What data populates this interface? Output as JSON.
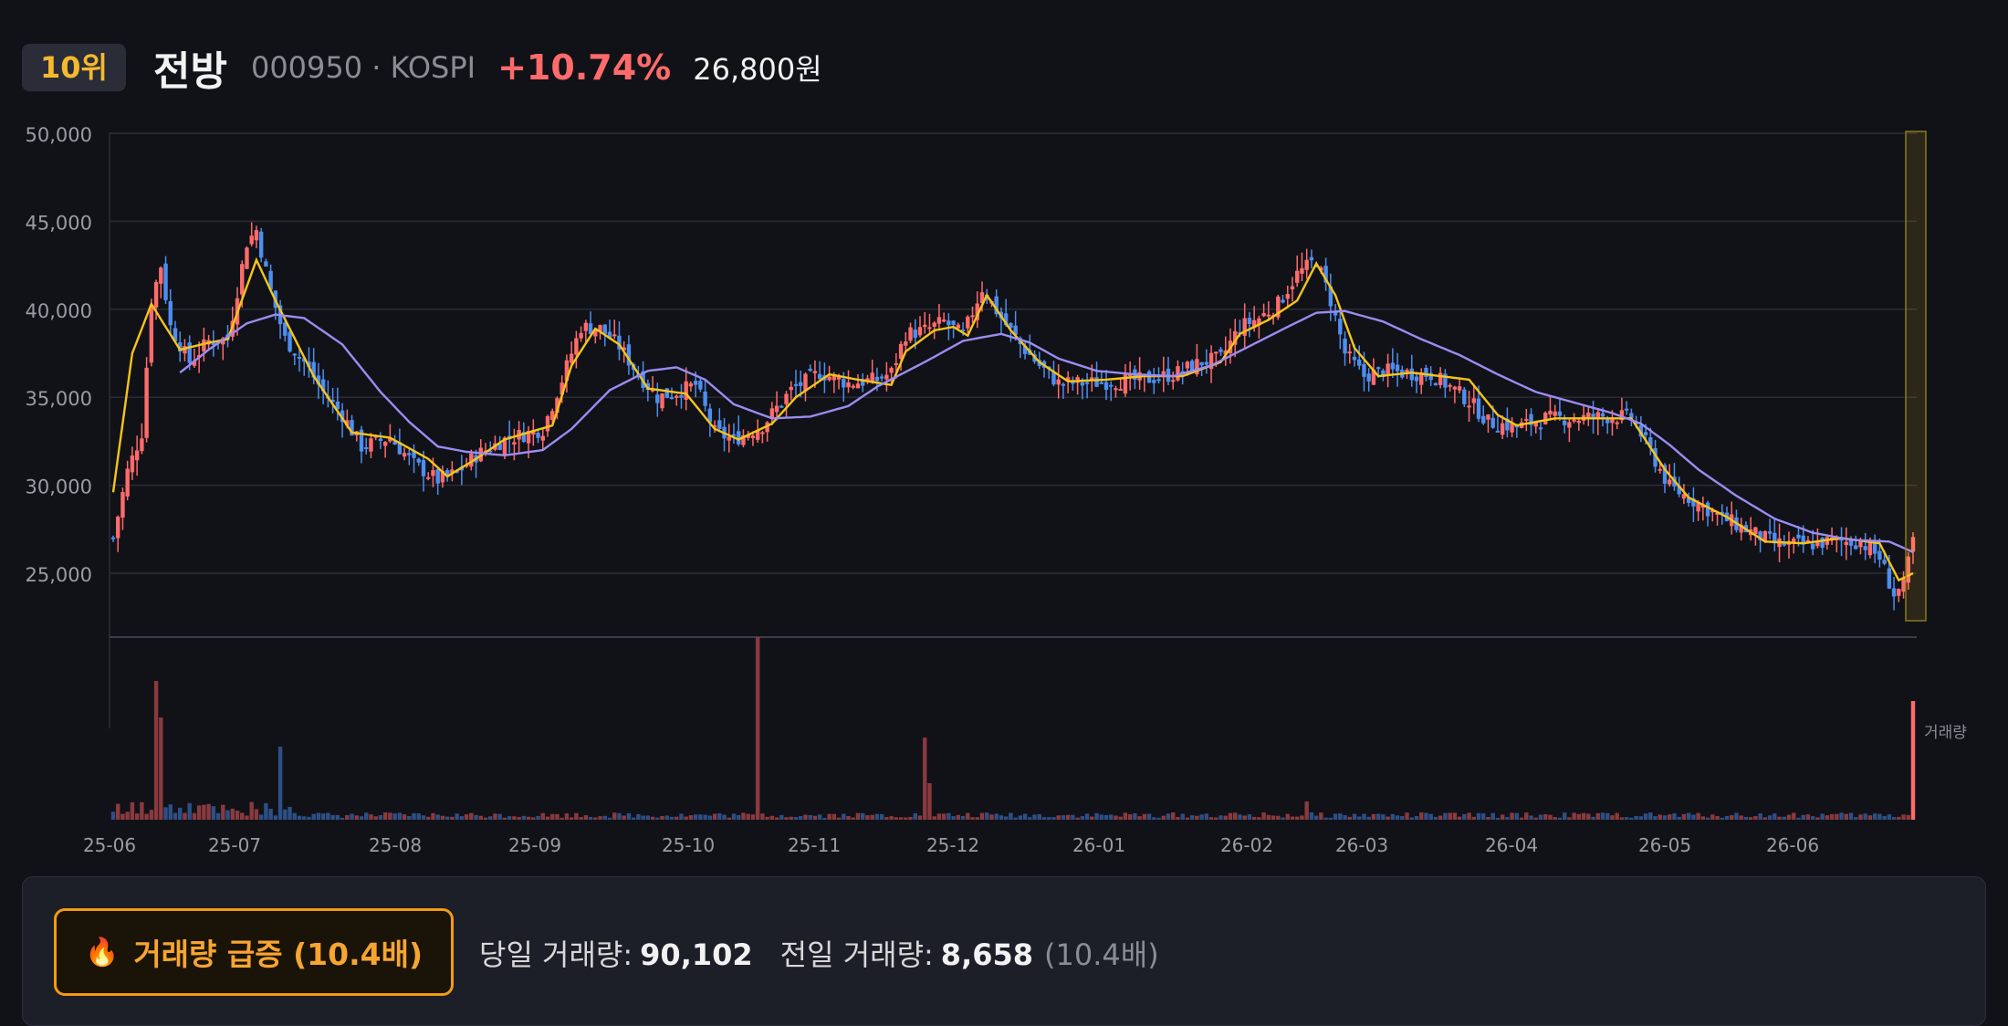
{
  "header": {
    "rank": "10위",
    "name": "전방",
    "code": "000950 · KOSPI",
    "change": "+10.74%",
    "price": "26,800원"
  },
  "footer": {
    "badge_icon": "fire-icon",
    "badge_label": "거래량 급증 (10.4배)",
    "today_label": "당일 거래량:",
    "today_value": "90,102",
    "prev_label": "전일 거래량:",
    "prev_value": "8,658",
    "ratio": "(10.4배)"
  },
  "colors": {
    "up": "#ff6b6b",
    "down": "#4d8ef0",
    "ma_short": "#f5c518",
    "ma_long": "#9b8cf2",
    "highlight": "#f5c518"
  },
  "chart_data": {
    "type": "candlestick",
    "y_ticks": [
      "50,000",
      "45,000",
      "40,000",
      "35,000",
      "30,000",
      "25,000"
    ],
    "ylim": [
      22500,
      50000
    ],
    "x_ticks": [
      "25-06",
      "25-07",
      "25-08",
      "25-09",
      "25-10",
      "25-11",
      "25-12",
      "26-01",
      "26-02",
      "26-03",
      "26-04",
      "26-05",
      "26-06"
    ],
    "volume_label": "거래량",
    "series": [
      {
        "name": "short MA",
        "anchors": [
          [
            0,
            29600
          ],
          [
            4,
            37500
          ],
          [
            8,
            40300
          ],
          [
            14,
            37700
          ],
          [
            20,
            38100
          ],
          [
            24,
            38300
          ],
          [
            30,
            42800
          ],
          [
            34,
            40500
          ],
          [
            42,
            36200
          ],
          [
            50,
            33000
          ],
          [
            58,
            32700
          ],
          [
            66,
            31500
          ],
          [
            70,
            30500
          ],
          [
            76,
            31500
          ],
          [
            82,
            32600
          ],
          [
            92,
            33400
          ],
          [
            96,
            36800
          ],
          [
            101,
            38900
          ],
          [
            106,
            38000
          ],
          [
            112,
            35500
          ],
          [
            120,
            35200
          ],
          [
            126,
            33200
          ],
          [
            131,
            32600
          ],
          [
            138,
            33500
          ],
          [
            143,
            35000
          ],
          [
            150,
            36300
          ],
          [
            156,
            36000
          ],
          [
            163,
            35700
          ],
          [
            166,
            37600
          ],
          [
            172,
            38800
          ],
          [
            176,
            39000
          ],
          [
            179,
            38500
          ],
          [
            183,
            40800
          ],
          [
            188,
            38800
          ],
          [
            194,
            37000
          ],
          [
            200,
            35900
          ],
          [
            208,
            36000
          ],
          [
            216,
            36200
          ],
          [
            224,
            36200
          ],
          [
            232,
            37000
          ],
          [
            236,
            38600
          ],
          [
            242,
            39400
          ],
          [
            248,
            40500
          ],
          [
            252,
            42600
          ],
          [
            256,
            40800
          ],
          [
            260,
            37800
          ],
          [
            265,
            36200
          ],
          [
            272,
            36400
          ],
          [
            278,
            36200
          ],
          [
            284,
            36000
          ],
          [
            290,
            34000
          ],
          [
            294,
            33400
          ],
          [
            302,
            33800
          ],
          [
            310,
            33800
          ],
          [
            318,
            33800
          ],
          [
            325,
            30900
          ],
          [
            330,
            29300
          ],
          [
            338,
            28200
          ],
          [
            346,
            26800
          ],
          [
            354,
            26700
          ],
          [
            362,
            27000
          ],
          [
            370,
            26700
          ],
          [
            374,
            24600
          ],
          [
            377,
            25000
          ]
        ]
      },
      {
        "name": "long MA",
        "anchors": [
          [
            14,
            36400
          ],
          [
            20,
            37700
          ],
          [
            28,
            39200
          ],
          [
            34,
            39700
          ],
          [
            40,
            39500
          ],
          [
            48,
            38000
          ],
          [
            56,
            35300
          ],
          [
            62,
            33600
          ],
          [
            68,
            32200
          ],
          [
            74,
            31900
          ],
          [
            82,
            31700
          ],
          [
            90,
            32000
          ],
          [
            96,
            33200
          ],
          [
            104,
            35400
          ],
          [
            112,
            36500
          ],
          [
            118,
            36700
          ],
          [
            124,
            36000
          ],
          [
            130,
            34600
          ],
          [
            138,
            33800
          ],
          [
            146,
            33900
          ],
          [
            154,
            34500
          ],
          [
            160,
            35600
          ],
          [
            170,
            37000
          ],
          [
            178,
            38200
          ],
          [
            186,
            38600
          ],
          [
            192,
            38100
          ],
          [
            198,
            37200
          ],
          [
            206,
            36500
          ],
          [
            214,
            36300
          ],
          [
            222,
            36200
          ],
          [
            230,
            36800
          ],
          [
            238,
            37900
          ],
          [
            246,
            39000
          ],
          [
            252,
            39800
          ],
          [
            258,
            39900
          ],
          [
            266,
            39300
          ],
          [
            274,
            38300
          ],
          [
            282,
            37400
          ],
          [
            290,
            36300
          ],
          [
            298,
            35300
          ],
          [
            306,
            34700
          ],
          [
            314,
            34100
          ],
          [
            320,
            33500
          ],
          [
            326,
            32300
          ],
          [
            332,
            30900
          ],
          [
            340,
            29400
          ],
          [
            348,
            28100
          ],
          [
            356,
            27300
          ],
          [
            364,
            26900
          ],
          [
            372,
            26800
          ],
          [
            377,
            26200
          ]
        ]
      }
    ],
    "candle_count": 378,
    "candle_anchors": [
      [
        0,
        27000
      ],
      [
        3,
        30800
      ],
      [
        6,
        33000
      ],
      [
        8,
        40500
      ],
      [
        10,
        42500
      ],
      [
        12,
        39000
      ],
      [
        16,
        37000
      ],
      [
        20,
        38200
      ],
      [
        24,
        38300
      ],
      [
        28,
        43800
      ],
      [
        30,
        44500
      ],
      [
        33,
        41000
      ],
      [
        36,
        38300
      ],
      [
        40,
        37000
      ],
      [
        44,
        35300
      ],
      [
        48,
        34000
      ],
      [
        52,
        32200
      ],
      [
        58,
        32700
      ],
      [
        63,
        31200
      ],
      [
        68,
        30300
      ],
      [
        72,
        30700
      ],
      [
        76,
        31700
      ],
      [
        82,
        32600
      ],
      [
        90,
        33200
      ],
      [
        94,
        36000
      ],
      [
        98,
        39000
      ],
      [
        102,
        38900
      ],
      [
        106,
        37900
      ],
      [
        110,
        36300
      ],
      [
        114,
        35000
      ],
      [
        118,
        35300
      ],
      [
        122,
        35700
      ],
      [
        126,
        33000
      ],
      [
        130,
        32600
      ],
      [
        136,
        33400
      ],
      [
        142,
        35400
      ],
      [
        148,
        36400
      ],
      [
        154,
        35800
      ],
      [
        160,
        36000
      ],
      [
        163,
        36400
      ],
      [
        166,
        38600
      ],
      [
        170,
        38800
      ],
      [
        174,
        39300
      ],
      [
        178,
        38500
      ],
      [
        182,
        41200
      ],
      [
        186,
        39500
      ],
      [
        190,
        38000
      ],
      [
        194,
        36800
      ],
      [
        198,
        35800
      ],
      [
        204,
        35800
      ],
      [
        210,
        35900
      ],
      [
        216,
        36000
      ],
      [
        222,
        36300
      ],
      [
        228,
        37000
      ],
      [
        232,
        37200
      ],
      [
        236,
        39000
      ],
      [
        240,
        39500
      ],
      [
        244,
        40300
      ],
      [
        248,
        42000
      ],
      [
        252,
        42800
      ],
      [
        255,
        40500
      ],
      [
        258,
        37500
      ],
      [
        262,
        36200
      ],
      [
        266,
        36500
      ],
      [
        270,
        36400
      ],
      [
        276,
        36300
      ],
      [
        280,
        35600
      ],
      [
        284,
        34800
      ],
      [
        288,
        33600
      ],
      [
        294,
        33300
      ],
      [
        300,
        33800
      ],
      [
        306,
        33800
      ],
      [
        312,
        33900
      ],
      [
        318,
        33900
      ],
      [
        322,
        31900
      ],
      [
        326,
        29900
      ],
      [
        330,
        29300
      ],
      [
        336,
        28300
      ],
      [
        342,
        27500
      ],
      [
        348,
        26700
      ],
      [
        354,
        26600
      ],
      [
        360,
        26800
      ],
      [
        366,
        26800
      ],
      [
        370,
        25900
      ],
      [
        373,
        23800
      ],
      [
        375,
        24300
      ],
      [
        377,
        26900
      ]
    ],
    "volume_spikes": [
      [
        9,
        0.76
      ],
      [
        10,
        0.56
      ],
      [
        35,
        0.4
      ],
      [
        135,
        1.0
      ],
      [
        170,
        0.45
      ],
      [
        171,
        0.2
      ],
      [
        250,
        0.1
      ],
      [
        377,
        0.65
      ]
    ]
  }
}
